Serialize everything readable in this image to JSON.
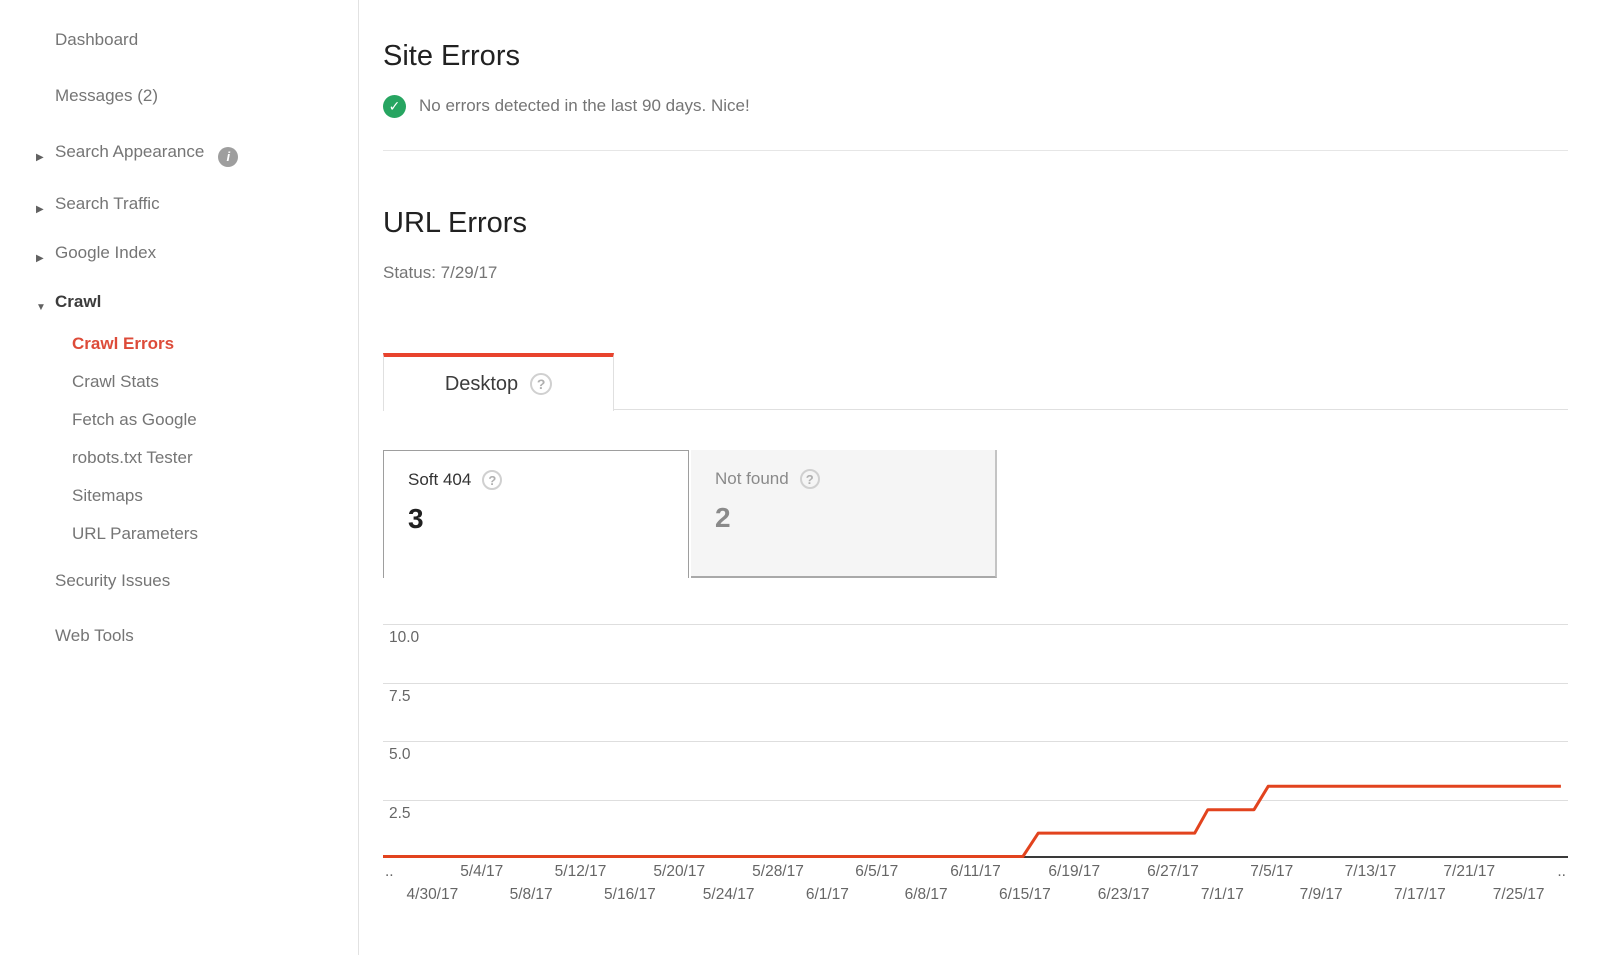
{
  "sidebar": {
    "items": [
      {
        "label": "Dashboard",
        "type": "top"
      },
      {
        "label": "Messages (2)",
        "type": "top"
      },
      {
        "label": "Search Appearance",
        "type": "top",
        "arrow": "right",
        "info": true
      },
      {
        "label": "Search Traffic",
        "type": "top",
        "arrow": "right"
      },
      {
        "label": "Google Index",
        "type": "top",
        "arrow": "right"
      },
      {
        "label": "Crawl",
        "type": "top",
        "arrow": "down",
        "bold": true
      },
      {
        "label": "Crawl Errors",
        "type": "sub",
        "active": true
      },
      {
        "label": "Crawl Stats",
        "type": "sub"
      },
      {
        "label": "Fetch as Google",
        "type": "sub"
      },
      {
        "label": "robots.txt Tester",
        "type": "sub"
      },
      {
        "label": "Sitemaps",
        "type": "sub"
      },
      {
        "label": "URL Parameters",
        "type": "sub"
      },
      {
        "label": "Security Issues",
        "type": "top"
      },
      {
        "label": "Web Tools",
        "type": "top"
      }
    ]
  },
  "site_errors": {
    "title": "Site Errors",
    "message": "No errors detected in the last 90 days. Nice!"
  },
  "url_errors": {
    "title": "URL Errors",
    "status": "Status: 7/29/17",
    "tab_label": "Desktop",
    "help_glyph": "?"
  },
  "cards": [
    {
      "label": "Soft 404",
      "value": "3",
      "selected": true
    },
    {
      "label": "Not found",
      "value": "2",
      "selected": false
    }
  ],
  "colors": {
    "accent_red": "#dd4b39",
    "tab_red": "#e8432d",
    "chart_line_red": "#e2431e",
    "success_green": "#27a561"
  },
  "chart_data": {
    "type": "line",
    "title": "",
    "xlabel": "",
    "ylabel": "",
    "grid": true,
    "legend": "none",
    "ylim": [
      0,
      10.8
    ],
    "yticks": [
      10.0,
      7.5,
      5.0,
      2.5
    ],
    "series": [
      {
        "name": "URL errors (Soft 404, Desktop)",
        "color": "#e2431e",
        "segments": [
          {
            "from": "4/28/17",
            "to": "6/17/17",
            "value": 0
          },
          {
            "from": "6/18/17",
            "to": "7/5/17",
            "value": 1
          },
          {
            "from": "7/6/17",
            "to": "7/9/17",
            "value": 2
          },
          {
            "from": "7/10/17",
            "to": "7/29/17",
            "value": 3
          }
        ],
        "points_pct": [
          [
            0,
            0
          ],
          [
            54.0,
            0
          ],
          [
            55.3,
            1
          ],
          [
            68.5,
            1
          ],
          [
            69.6,
            2
          ],
          [
            73.5,
            2
          ],
          [
            74.7,
            3
          ],
          [
            99.4,
            3
          ]
        ]
      }
    ],
    "x_axis": {
      "row1": [
        "..",
        "5/4/17",
        "5/12/17",
        "5/20/17",
        "5/28/17",
        "6/5/17",
        "6/11/17",
        "6/19/17",
        "6/27/17",
        "7/5/17",
        "7/13/17",
        "7/21/17",
        ".."
      ],
      "row2": [
        "4/30/17",
        "5/8/17",
        "5/16/17",
        "5/24/17",
        "6/1/17",
        "6/8/17",
        "6/15/17",
        "6/23/17",
        "7/1/17",
        "7/9/17",
        "7/17/17",
        "7/25/17"
      ]
    }
  }
}
